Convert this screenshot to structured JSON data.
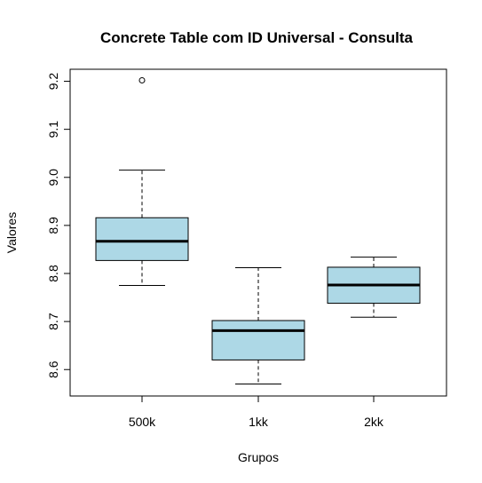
{
  "chart_data": {
    "type": "boxplot",
    "title": "Concrete Table com ID Universal - Consulta",
    "xlabel": "Grupos",
    "ylabel": "Valores",
    "categories": [
      "500k",
      "1kk",
      "2kk"
    ],
    "yticks": [
      "8.6",
      "8.7",
      "8.8",
      "8.9",
      "9.0",
      "9.1",
      "9.2"
    ],
    "ylim": [
      8.545,
      9.225
    ],
    "box_fill": "#add8e6",
    "boxes": [
      {
        "name": "500k",
        "whisker_low": 8.775,
        "q1": 8.827,
        "median": 8.867,
        "q3": 8.916,
        "whisker_high": 9.015,
        "outliers": [
          9.202
        ]
      },
      {
        "name": "1kk",
        "whisker_low": 8.57,
        "q1": 8.62,
        "median": 8.681,
        "q3": 8.702,
        "whisker_high": 8.812,
        "outliers": []
      },
      {
        "name": "2kk",
        "whisker_low": 8.709,
        "q1": 8.738,
        "median": 8.776,
        "q3": 8.813,
        "whisker_high": 8.834,
        "outliers": []
      }
    ]
  }
}
